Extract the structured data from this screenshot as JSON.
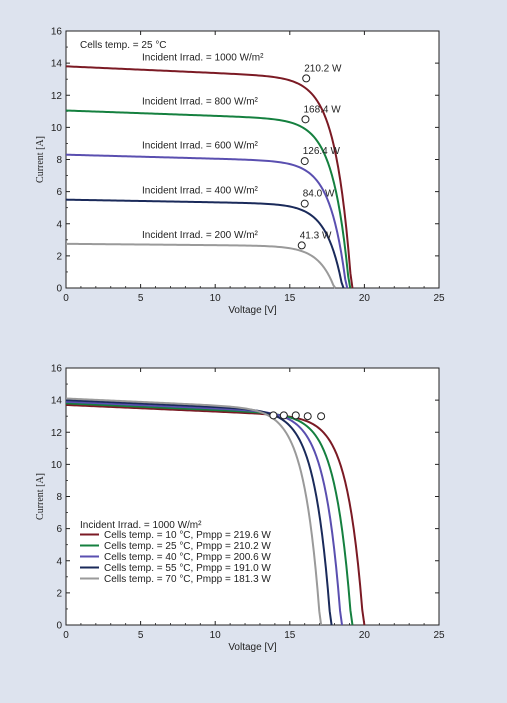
{
  "chart_data": [
    {
      "type": "line",
      "title": "",
      "xlabel": "Voltage [V]",
      "ylabel": "Current [A]",
      "xlim": [
        0,
        25
      ],
      "ylim": [
        0,
        16
      ],
      "xticks": [
        "0",
        "5",
        "10",
        "15",
        "20",
        "25"
      ],
      "yticks": [
        "0",
        "2",
        "4",
        "6",
        "8",
        "10",
        "12",
        "14",
        "16"
      ],
      "grid": false,
      "header_note": "Cells temp. = 25 °C",
      "series": [
        {
          "name": "Incident Irrad. = 1000 W/m²",
          "color": "#7b1a24",
          "isc": 13.8,
          "voc": 19.2,
          "vmpp": 16.1,
          "impp": 13.05,
          "pmpp_label": "210.2 W"
        },
        {
          "name": "Incident Irrad. = 800 W/m²",
          "color": "#15803f",
          "isc": 11.05,
          "voc": 19.05,
          "vmpp": 16.05,
          "impp": 10.5,
          "pmpp_label": "168.4 W"
        },
        {
          "name": "Incident Irrad. = 600 W/m²",
          "color": "#5a4fb0",
          "isc": 8.3,
          "voc": 18.85,
          "vmpp": 16.0,
          "impp": 7.9,
          "pmpp_label": "126.4 W"
        },
        {
          "name": "Incident Irrad. = 400 W/m²",
          "color": "#1a2a5a",
          "isc": 5.5,
          "voc": 18.6,
          "vmpp": 16.0,
          "impp": 5.25,
          "pmpp_label": "84.0 W"
        },
        {
          "name": "Incident Irrad. = 200 W/m²",
          "color": "#9a9a9a",
          "isc": 2.75,
          "voc": 18.05,
          "vmpp": 15.8,
          "impp": 2.65,
          "pmpp_label": "41.3 W"
        }
      ]
    },
    {
      "type": "line",
      "title": "",
      "xlabel": "Voltage [V]",
      "ylabel": "Current [A]",
      "xlim": [
        0,
        25
      ],
      "ylim": [
        0,
        16
      ],
      "xticks": [
        "0",
        "5",
        "10",
        "15",
        "20",
        "25"
      ],
      "yticks": [
        "0",
        "2",
        "4",
        "6",
        "8",
        "10",
        "12",
        "14",
        "16"
      ],
      "grid": false,
      "legend_title": "Incident Irrad. = 1000 W/m²",
      "legend_position": "lower-left",
      "series": [
        {
          "name": "Cells temp. = 10 °C,  Pmpp = 219.6 W",
          "color": "#7b1a24",
          "isc": 13.7,
          "voc": 20.0,
          "vmpp": 17.1,
          "impp": 13.0
        },
        {
          "name": "Cells temp. = 25 °C,  Pmpp = 210.2 W",
          "color": "#15803f",
          "isc": 13.8,
          "voc": 19.2,
          "vmpp": 16.2,
          "impp": 13.0
        },
        {
          "name": "Cells temp. = 40 °C,  Pmpp = 200.6 W",
          "color": "#5a4fb0",
          "isc": 13.9,
          "voc": 18.5,
          "vmpp": 15.4,
          "impp": 13.05
        },
        {
          "name": "Cells temp. = 55 °C,  Pmpp = 191.0 W",
          "color": "#1a2a5a",
          "isc": 14.0,
          "voc": 17.8,
          "vmpp": 14.6,
          "impp": 13.05
        },
        {
          "name": "Cells temp. = 70 °C,  Pmpp = 181.3 W",
          "color": "#9a9a9a",
          "isc": 14.1,
          "voc": 17.1,
          "vmpp": 13.9,
          "impp": 13.05
        }
      ]
    }
  ]
}
